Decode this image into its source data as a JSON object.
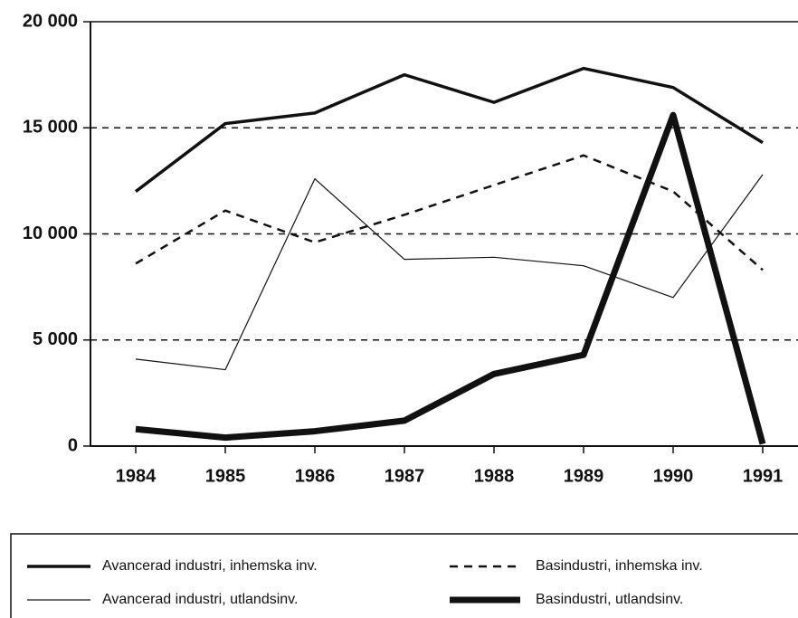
{
  "chart_data": {
    "type": "line",
    "categories": [
      "1984",
      "1985",
      "1986",
      "1987",
      "1988",
      "1989",
      "1990",
      "1991"
    ],
    "series": [
      {
        "name": "Avancerad industri, inhemska inv.",
        "color": "#111111",
        "style": "solid",
        "width": 3.5,
        "values": [
          12000,
          15200,
          15700,
          17500,
          16200,
          17800,
          16900,
          14300
        ]
      },
      {
        "name": "Basindustri, inhemska inv.",
        "color": "#111111",
        "style": "dashed",
        "width": 2.5,
        "values": [
          8600,
          11100,
          9600,
          10900,
          12300,
          13700,
          12000,
          8300
        ]
      },
      {
        "name": "Avancerad industri, utlandsinv.",
        "color": "#111111",
        "style": "solid",
        "width": 1.2,
        "values": [
          4100,
          3600,
          12600,
          8800,
          8900,
          8500,
          7000,
          12800
        ]
      },
      {
        "name": "Basindustri, utlandsinv.",
        "color": "#111111",
        "style": "solid",
        "width": 7,
        "values": [
          800,
          400,
          700,
          1200,
          3400,
          4300,
          15600,
          100
        ]
      }
    ],
    "ylim": [
      0,
      20000
    ],
    "yticks": [
      0,
      {
        "value": 5000,
        "label": "5 000"
      },
      {
        "value": 10000,
        "label": "10 000"
      },
      {
        "value": 15000,
        "label": "15 000"
      },
      {
        "value": 20000,
        "label": "20 000"
      }
    ],
    "grid": true
  }
}
